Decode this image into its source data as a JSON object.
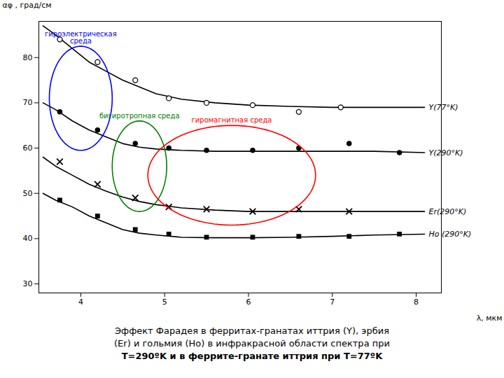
{
  "chart_data": {
    "type": "line",
    "x_label": "λ, мкм",
    "y_label": "αφ , град/см",
    "xlim": [
      3.5,
      8.3
    ],
    "ylim": [
      28,
      88
    ],
    "xticks": [
      4,
      5,
      6,
      7,
      8
    ],
    "yticks": [
      30,
      40,
      50,
      60,
      70,
      80
    ],
    "grid": false,
    "series": [
      {
        "name": "Y(77°K)",
        "color": "#000000",
        "marker": "open_circle",
        "x": [
          3.55,
          3.7,
          3.9,
          4.1,
          4.3,
          4.5,
          4.7,
          4.9,
          5.2,
          5.6,
          6.0,
          6.5,
          7.0,
          7.5,
          8.1
        ],
        "values": [
          87,
          85,
          82,
          79,
          77,
          75,
          73.5,
          72,
          70.8,
          70,
          69.5,
          69.2,
          69,
          69,
          69
        ],
        "marker_x": [
          3.75,
          4.2,
          4.65,
          5.05,
          5.5,
          6.05,
          6.6,
          7.1
        ],
        "marker_values": [
          84,
          79,
          75,
          71,
          70,
          69.5,
          68,
          69
        ]
      },
      {
        "name": "Y(290°K)",
        "color": "#000000",
        "marker": "circle",
        "x": [
          3.55,
          3.7,
          3.9,
          4.1,
          4.3,
          4.5,
          4.7,
          4.9,
          5.2,
          5.6,
          6.0,
          6.5,
          7.0,
          7.5,
          8.1
        ],
        "values": [
          70,
          68.5,
          66,
          64,
          62.5,
          61,
          60.2,
          59.8,
          59.5,
          59.3,
          59.3,
          59.3,
          59.3,
          59.3,
          59
        ],
        "marker_x": [
          3.75,
          4.2,
          4.65,
          5.05,
          5.5,
          6.05,
          6.6,
          7.2,
          7.8
        ],
        "marker_values": [
          68,
          64,
          61,
          60,
          59.5,
          59.5,
          60,
          61,
          59
        ]
      },
      {
        "name": "Er(290°K)",
        "color": "#000000",
        "marker": "cross",
        "x": [
          3.55,
          3.7,
          3.9,
          4.1,
          4.3,
          4.5,
          4.7,
          4.9,
          5.2,
          5.6,
          6.0,
          6.5,
          7.0,
          7.5,
          8.1
        ],
        "values": [
          58,
          56,
          54,
          52,
          50.5,
          49.2,
          48.2,
          47.5,
          46.8,
          46.3,
          46,
          46,
          46,
          46,
          46
        ],
        "marker_x": [
          3.75,
          4.2,
          4.65,
          5.05,
          5.5,
          6.05,
          6.6,
          7.2
        ],
        "marker_values": [
          57,
          52,
          49,
          47,
          46.5,
          46,
          46.5,
          46
        ]
      },
      {
        "name": "Ho (290°K)",
        "color": "#000000",
        "marker": "square",
        "x": [
          3.55,
          3.7,
          3.9,
          4.1,
          4.3,
          4.5,
          4.7,
          4.9,
          5.2,
          5.6,
          6.0,
          6.5,
          7.0,
          7.5,
          8.1
        ],
        "values": [
          50,
          48.5,
          47,
          45,
          43.5,
          42,
          41.2,
          40.8,
          40.3,
          40.2,
          40.2,
          40.3,
          40.5,
          40.8,
          41
        ],
        "marker_x": [
          3.75,
          4.2,
          4.65,
          5.05,
          5.5,
          6.05,
          6.6,
          7.2,
          7.8
        ],
        "marker_values": [
          48.5,
          45,
          42,
          41,
          40.3,
          40.3,
          40.5,
          40.5,
          41
        ]
      }
    ],
    "annotations": [
      {
        "text": "гироэлектрическая\nсреда",
        "color": "blue",
        "ellipse": {
          "cx": 4.0,
          "cy": 71,
          "width": 0.75,
          "height": 23
        }
      },
      {
        "text": "бигиротропная среда",
        "color": "green",
        "ellipse": {
          "cx": 4.7,
          "cy": 56,
          "width": 0.65,
          "height": 20
        }
      },
      {
        "text": "гиромагнитная среда",
        "color": "red",
        "ellipse": {
          "cx": 5.8,
          "cy": 54,
          "width": 2.0,
          "height": 22
        }
      }
    ],
    "caption": [
      "Эффект Фарадея в ферритах-гранатах иттрия (Y), эрбия",
      "(Er) и гольмия (Ho) в инфракрасной области спектра при",
      "T=290ºK и в феррите-гранате иттрия при T=77ºK"
    ]
  }
}
